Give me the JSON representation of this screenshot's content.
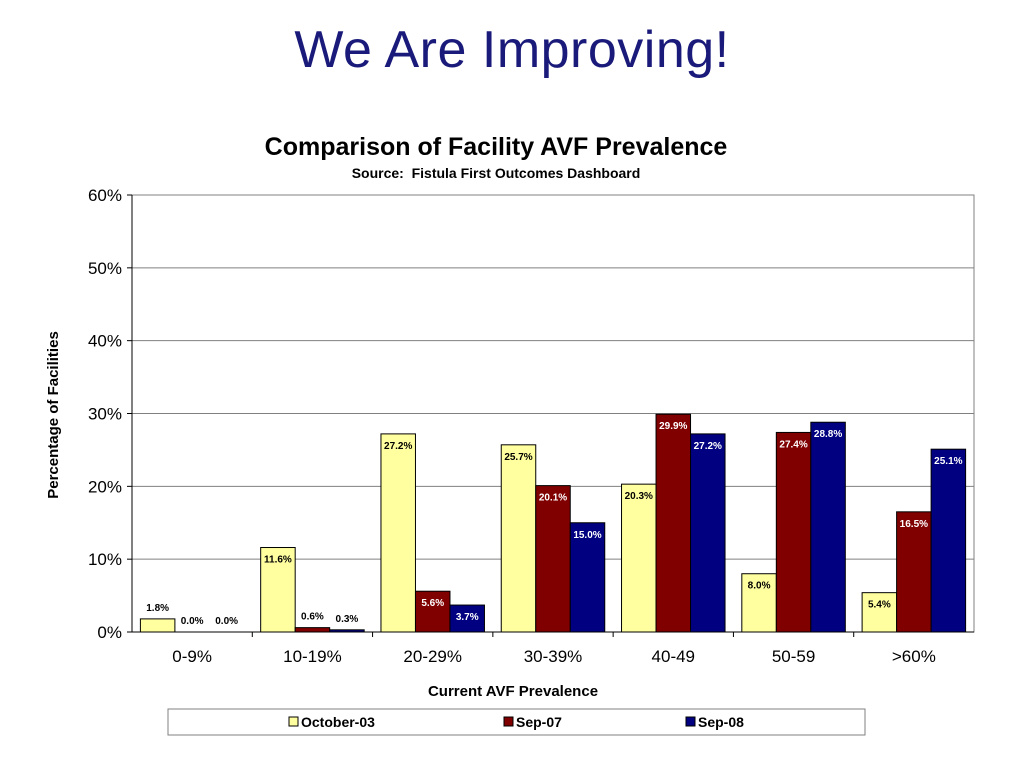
{
  "slide": {
    "title": "We Are Improving!"
  },
  "chart_data": {
    "type": "bar",
    "title": "Comparison of Facility AVF Prevalence",
    "subtitle": "Source:  Fistula First Outcomes Dashboard",
    "xlabel": "Current AVF Prevalence",
    "ylabel": "Percentage of Facilities",
    "ylim": [
      0,
      60
    ],
    "yticks": [
      "0%",
      "10%",
      "20%",
      "30%",
      "40%",
      "50%",
      "60%"
    ],
    "grid": true,
    "legend_position": "bottom",
    "categories": [
      "0-9%",
      "10-19%",
      "20-29%",
      "30-39%",
      "40-49",
      "50-59",
      ">60%"
    ],
    "series": [
      {
        "name": "October-03",
        "color": "#ffffa0",
        "values": [
          1.8,
          11.6,
          27.2,
          25.7,
          20.3,
          8.0,
          5.4
        ],
        "labels": [
          "1.8%",
          "11.6%",
          "27.2%",
          "25.7%",
          "20.3%",
          "8.0%",
          "5.4%"
        ]
      },
      {
        "name": "Sep-07",
        "color": "#800000",
        "values": [
          0.0,
          0.6,
          5.6,
          20.1,
          29.9,
          27.4,
          16.5
        ],
        "labels": [
          "0.0%",
          "0.6%",
          "5.6%",
          "20.1%",
          "29.9%",
          "27.4%",
          "16.5%"
        ]
      },
      {
        "name": "Sep-08",
        "color": "#000080",
        "values": [
          0.0,
          0.3,
          3.7,
          15.0,
          27.2,
          28.8,
          25.1
        ],
        "labels": [
          "0.0%",
          "0.3%",
          "3.7%",
          "15.0%",
          "27.2%",
          "28.8%",
          "25.1%"
        ]
      }
    ]
  }
}
